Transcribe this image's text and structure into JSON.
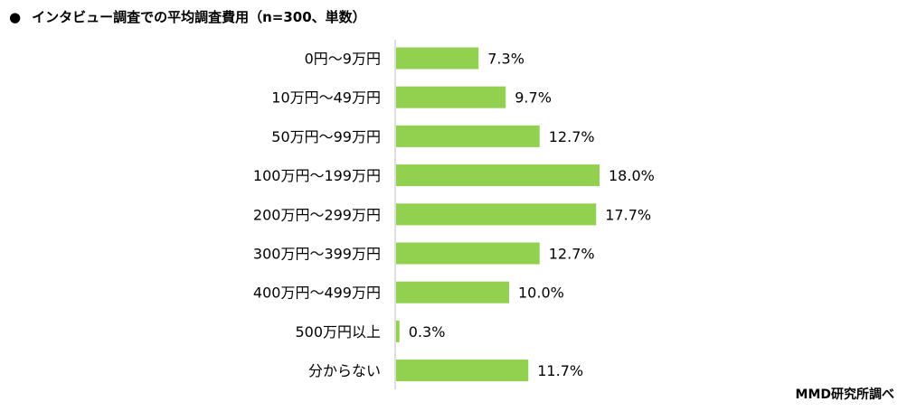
{
  "title": "インタビュー調査での平均調査費用（n=300、単数）",
  "title_bullet": "●",
  "source": "MMD研究所調べ",
  "bar_color": "#92d050",
  "chart_data": {
    "type": "bar",
    "orientation": "horizontal",
    "title": "インタビュー調査での平均調査費用（n=300、単数）",
    "categories": [
      "0円～9万円",
      "10万円～49万円",
      "50万円～99万円",
      "100万円～199万円",
      "200万円～299万円",
      "300万円～399万円",
      "400万円～499万円",
      "500万円以上",
      "分からない"
    ],
    "values": [
      7.3,
      9.7,
      12.7,
      18.0,
      17.7,
      12.7,
      10.0,
      0.3,
      11.7
    ],
    "labels": [
      "7.3%",
      "9.7%",
      "12.7%",
      "18.0%",
      "17.7%",
      "12.7%",
      "10.0%",
      "0.3%",
      "11.7%"
    ],
    "unit": "%",
    "xlim": [
      0,
      18.0
    ],
    "grid": false,
    "legend": "none"
  }
}
